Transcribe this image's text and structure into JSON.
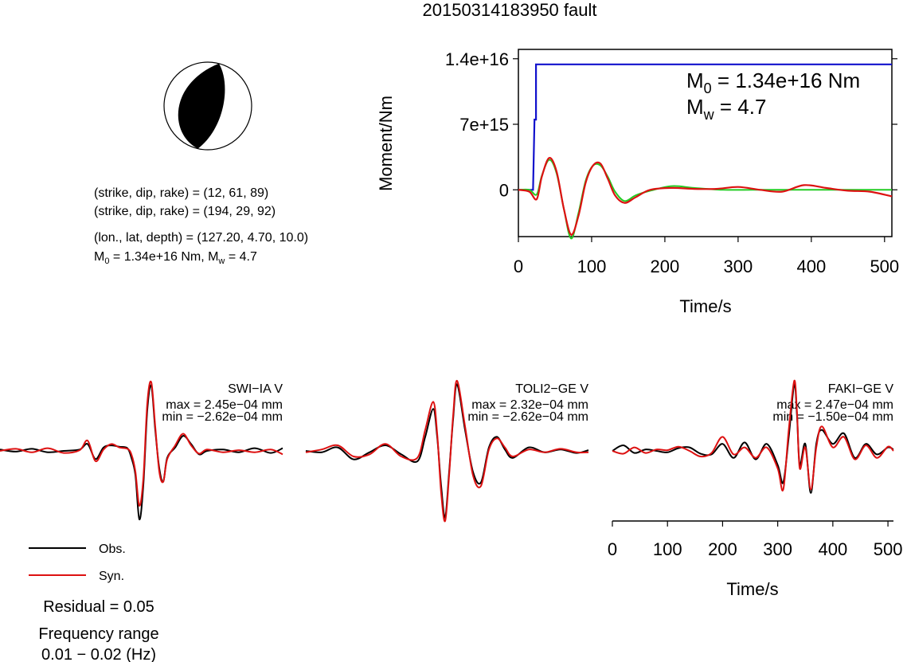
{
  "title": "20150314183950 fault",
  "mechanism": {
    "line1": "(strike, dip, rake) = (12, 61, 89)",
    "line2": "(strike, dip, rake) = (194, 29, 92)",
    "location": "(lon., lat, depth) = (127.20, 4.70, 10.0)",
    "m0_text": "M",
    "m0_sub": "0",
    "m0_value": " = 1.34e+16 Nm, M",
    "mw_sub": "w",
    "mw_value": " = 4.7"
  },
  "colors": {
    "observed": "#000000",
    "synthetic": "#dd1111",
    "cumulative_moment": "#1111cc",
    "moment_rate": "#22cc22"
  },
  "chart_data": [
    {
      "type": "line",
      "ylabel": "Moment/Nm",
      "xlabel": "Time/s",
      "xlim": [
        0,
        510
      ],
      "ylim": [
        -5000000000000000.0,
        1.5e+16
      ],
      "yticks": [
        {
          "v": 1.4e+16,
          "label": "1.4e+16"
        },
        {
          "v": 7000000000000000.0,
          "label": "7e+15"
        },
        {
          "v": 0,
          "label": "0"
        }
      ],
      "xticks": [
        0,
        100,
        200,
        300,
        400,
        500
      ],
      "annotation": {
        "m0_main": "M",
        "m0_sub": "0",
        "m0_rest": " = 1.34e+16 Nm",
        "mw_main": "M",
        "mw_sub": "w",
        "mw_rest": " = 4.7"
      },
      "series": [
        {
          "key": "cumulative",
          "x": [
            0,
            20,
            22,
            24,
            24,
            510
          ],
          "y": [
            0,
            0,
            7500000000000000.0,
            7500000000000000.0,
            1.34e+16,
            1.34e+16
          ]
        },
        {
          "key": "rate",
          "x": [
            0,
            15,
            25,
            32,
            42,
            52,
            62,
            72,
            82,
            92,
            102,
            112,
            122,
            132,
            145,
            160,
            180,
            210,
            240,
            280,
            320,
            360,
            400,
            440,
            480,
            510
          ],
          "y": [
            0,
            0,
            -500000000000000.0,
            1500000000000000.0,
            3200000000000000.0,
            1800000000000000.0,
            -2000000000000000.0,
            -5200000000000000.0,
            -2500000000000000.0,
            1000000000000000.0,
            2600000000000000.0,
            2600000000000000.0,
            1400000000000000.0,
            -200000000000000.0,
            -1200000000000000.0,
            -600000000000000.0,
            -100000000000000.0,
            400000000000000.0,
            200000000000000.0,
            0,
            0,
            0,
            0,
            0,
            0,
            0
          ]
        },
        {
          "key": "synthetic",
          "x": [
            0,
            15,
            25,
            32,
            42,
            52,
            62,
            72,
            82,
            92,
            102,
            112,
            122,
            132,
            145,
            160,
            180,
            210,
            240,
            270,
            300,
            330,
            360,
            390,
            420,
            450,
            480,
            510
          ],
          "y": [
            0,
            -200000000000000.0,
            -1000000000000000.0,
            1400000000000000.0,
            3400000000000000.0,
            2000000000000000.0,
            -2000000000000000.0,
            -4800000000000000.0,
            -2800000000000000.0,
            800000000000000.0,
            2600000000000000.0,
            2800000000000000.0,
            1200000000000000.0,
            -600000000000000.0,
            -1400000000000000.0,
            -800000000000000.0,
            0,
            200000000000000.0,
            100000000000000.0,
            100000000000000.0,
            300000000000000.0,
            0,
            -200000000000000.0,
            500000000000000.0,
            200000000000000.0,
            -100000000000000.0,
            -200000000000000.0,
            -700000000000000.0
          ]
        }
      ]
    },
    {
      "type": "line",
      "station": "SWI−IA V",
      "max_label": "max = 2.45e−04 mm",
      "min_label": "min = −2.62e−04 mm",
      "x": [
        0,
        20,
        40,
        60,
        80,
        100,
        110,
        120,
        130,
        140,
        150,
        160,
        165,
        170,
        175,
        180,
        185,
        190,
        195,
        200,
        205,
        210,
        220,
        230,
        240,
        250,
        260,
        280,
        300,
        320,
        340,
        355
      ],
      "observed": [
        0.02,
        -0.01,
        0.03,
        -0.02,
        0.0,
        0.02,
        0.1,
        -0.12,
        0.05,
        0.08,
        0.06,
        0.04,
        -0.1,
        -0.35,
        -1.0,
        -0.5,
        0.6,
        0.95,
        0.3,
        -0.25,
        -0.45,
        -0.1,
        0.05,
        0.22,
        0.1,
        -0.05,
        0.0,
        0.02,
        -0.02,
        0.04,
        -0.03,
        0.04
      ],
      "synthetic": [
        0.0,
        0.03,
        -0.02,
        0.04,
        -0.03,
        0.01,
        0.15,
        -0.15,
        0.02,
        0.1,
        0.05,
        0.03,
        -0.05,
        -0.3,
        -0.8,
        -0.4,
        0.7,
        1.0,
        0.35,
        -0.3,
        -0.45,
        -0.12,
        0.08,
        0.25,
        0.08,
        -0.04,
        0.02,
        -0.02,
        0.01,
        -0.02,
        0.02,
        -0.05
      ]
    },
    {
      "type": "line",
      "station": "TOLI2−GE V",
      "max_label": "max = 2.32e−04 mm",
      "min_label": "min = −2.62e−04 mm",
      "x": [
        0,
        20,
        40,
        60,
        80,
        100,
        120,
        140,
        150,
        160,
        165,
        170,
        175,
        180,
        185,
        190,
        200,
        210,
        220,
        230,
        240,
        250,
        260,
        280,
        300,
        320,
        340,
        355
      ],
      "observed": [
        0.0,
        -0.02,
        0.05,
        -0.12,
        -0.02,
        0.08,
        -0.05,
        -0.15,
        0.2,
        0.6,
        0.2,
        -0.5,
        -0.95,
        -0.3,
        0.45,
        0.95,
        0.3,
        -0.3,
        -0.45,
        0.05,
        0.2,
        0.02,
        -0.1,
        0.05,
        -0.02,
        0.02,
        -0.03,
        0.01
      ],
      "synthetic": [
        -0.02,
        0.02,
        0.08,
        -0.08,
        -0.05,
        0.1,
        -0.08,
        -0.1,
        0.3,
        0.7,
        0.25,
        -0.6,
        -1.0,
        -0.35,
        0.5,
        1.0,
        0.35,
        -0.35,
        -0.5,
        0.02,
        0.18,
        0.05,
        -0.08,
        0.02,
        -0.02,
        0.03,
        -0.02,
        -0.02
      ]
    },
    {
      "type": "line",
      "station": "FAKI−GE V",
      "max_label": "max = 2.47e−04 mm",
      "min_label": "min = −1.50e−04 mm",
      "xlabel": "Time/s",
      "xlim": [
        0,
        510
      ],
      "xticks": [
        0,
        100,
        200,
        300,
        400,
        500
      ],
      "x": [
        0,
        20,
        40,
        60,
        80,
        100,
        120,
        140,
        160,
        180,
        200,
        220,
        240,
        260,
        280,
        300,
        310,
        320,
        330,
        335,
        340,
        350,
        360,
        370,
        380,
        400,
        420,
        440,
        460,
        480,
        500,
        510
      ],
      "observed": [
        0.0,
        0.08,
        -0.03,
        0.02,
        0.0,
        -0.02,
        0.04,
        0.05,
        -0.04,
        -0.05,
        0.1,
        -0.1,
        0.12,
        -0.12,
        0.1,
        -0.2,
        -0.45,
        0.2,
        0.95,
        0.5,
        -0.2,
        0.1,
        -0.6,
        0.1,
        0.3,
        0.1,
        0.25,
        -0.1,
        0.1,
        -0.05,
        0.05,
        0.02
      ],
      "synthetic": [
        0.0,
        -0.04,
        0.05,
        -0.03,
        0.02,
        0.01,
        0.06,
        0.0,
        -0.08,
        -0.03,
        0.2,
        -0.05,
        0.05,
        -0.1,
        0.05,
        -0.25,
        -0.55,
        0.3,
        1.0,
        0.55,
        -0.25,
        0.05,
        -0.55,
        0.05,
        0.35,
        0.05,
        0.2,
        -0.12,
        0.08,
        -0.1,
        0.06,
        0.0
      ]
    }
  ],
  "legend": {
    "observed_label": "Obs.",
    "synthetic_label": "Syn."
  },
  "residual": "Residual = 0.05",
  "freq_title": "Frequency range",
  "freq_value": "0.01 − 0.02 (Hz)"
}
